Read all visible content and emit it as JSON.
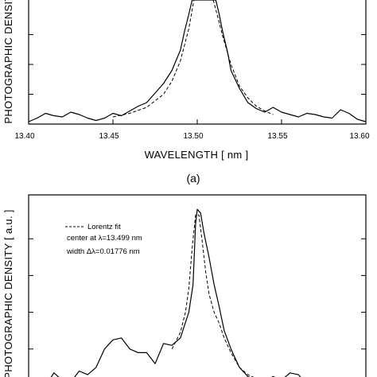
{
  "chart_data": [
    {
      "type": "line",
      "panel_label": "(a)",
      "xlabel": "WAVELENGTH [ nm ]",
      "ylabel": "PHOTOGRAPHIC DENSITY",
      "xlim": [
        13.4,
        13.6
      ],
      "ylim": [
        0,
        1.04
      ],
      "x_ticks": [
        "13.40",
        "13.45",
        "13.50",
        "13.55",
        "13.60"
      ],
      "series": [
        {
          "style": "solid",
          "x": [
            13.4,
            13.405,
            13.41,
            13.415,
            13.42,
            13.425,
            13.43,
            13.435,
            13.44,
            13.445,
            13.45,
            13.455,
            13.46,
            13.465,
            13.47,
            13.475,
            13.48,
            13.485,
            13.49,
            13.4925,
            13.495,
            13.497,
            13.511,
            13.513,
            13.515,
            13.518,
            13.52,
            13.525,
            13.53,
            13.535,
            13.54,
            13.545,
            13.55,
            13.555,
            13.56,
            13.565,
            13.57,
            13.575,
            13.58,
            13.585,
            13.59,
            13.595,
            13.6
          ],
          "y": [
            0.02,
            0.05,
            0.09,
            0.07,
            0.06,
            0.1,
            0.08,
            0.05,
            0.03,
            0.05,
            0.09,
            0.07,
            0.11,
            0.15,
            0.18,
            0.26,
            0.34,
            0.45,
            0.62,
            0.78,
            0.92,
            1.04,
            1.04,
            0.92,
            0.78,
            0.6,
            0.45,
            0.3,
            0.18,
            0.13,
            0.1,
            0.14,
            0.1,
            0.08,
            0.06,
            0.09,
            0.08,
            0.06,
            0.05,
            0.12,
            0.09,
            0.04,
            0.02
          ]
        },
        {
          "style": "dashed",
          "x": [
            13.45,
            13.46,
            13.47,
            13.48,
            13.485,
            13.49,
            13.495,
            13.498,
            13.5095,
            13.5125,
            13.515,
            13.52,
            13.525,
            13.53,
            13.535,
            13.54,
            13.545
          ],
          "y": [
            0.06,
            0.09,
            0.14,
            0.25,
            0.36,
            0.53,
            0.8,
            1.04,
            1.04,
            0.88,
            0.74,
            0.5,
            0.32,
            0.22,
            0.15,
            0.11,
            0.08
          ]
        }
      ]
    },
    {
      "type": "line",
      "ylabel": "PHOTOGRAPHIC DENSITY [ a.u. ]",
      "xlim": [
        13.4,
        13.6
      ],
      "ylim": [
        0,
        1.0
      ],
      "legend": {
        "label": "Lorentz fit",
        "lines": [
          "center at λ=13.499 nm",
          "width Δλ=0.01776 nm"
        ],
        "position": "top-left"
      },
      "series": [
        {
          "style": "solid",
          "x": [
            13.41,
            13.415,
            13.42,
            13.425,
            13.43,
            13.435,
            13.44,
            13.445,
            13.45,
            13.455,
            13.46,
            13.465,
            13.47,
            13.475,
            13.48,
            13.485,
            13.49,
            13.495,
            13.4975,
            13.499,
            13.5,
            13.502,
            13.504,
            13.507,
            13.51,
            13.513,
            13.516,
            13.52,
            13.525,
            13.53,
            13.535,
            13.54,
            13.545,
            13.55,
            13.555,
            13.56,
            13.565
          ],
          "y": [
            0.0,
            0.07,
            0.03,
            0.02,
            0.08,
            0.06,
            0.1,
            0.2,
            0.25,
            0.26,
            0.2,
            0.18,
            0.18,
            0.12,
            0.23,
            0.22,
            0.26,
            0.4,
            0.55,
            0.88,
            0.96,
            0.94,
            0.83,
            0.7,
            0.55,
            0.43,
            0.3,
            0.2,
            0.1,
            0.05,
            0.03,
            0.02,
            0.05,
            0.03,
            0.07,
            0.06,
            0.01
          ]
        },
        {
          "style": "dashed",
          "x": [
            13.485,
            13.49,
            13.493,
            13.495,
            13.497,
            13.499,
            13.501,
            13.503,
            13.505,
            13.507,
            13.51,
            13.513,
            13.516,
            13.52,
            13.525,
            13.53,
            13.535,
            13.54
          ],
          "y": [
            0.2,
            0.29,
            0.4,
            0.53,
            0.75,
            0.93,
            0.93,
            0.78,
            0.62,
            0.5,
            0.4,
            0.34,
            0.26,
            0.18,
            0.1,
            0.06,
            0.04,
            0.02
          ]
        }
      ]
    }
  ]
}
